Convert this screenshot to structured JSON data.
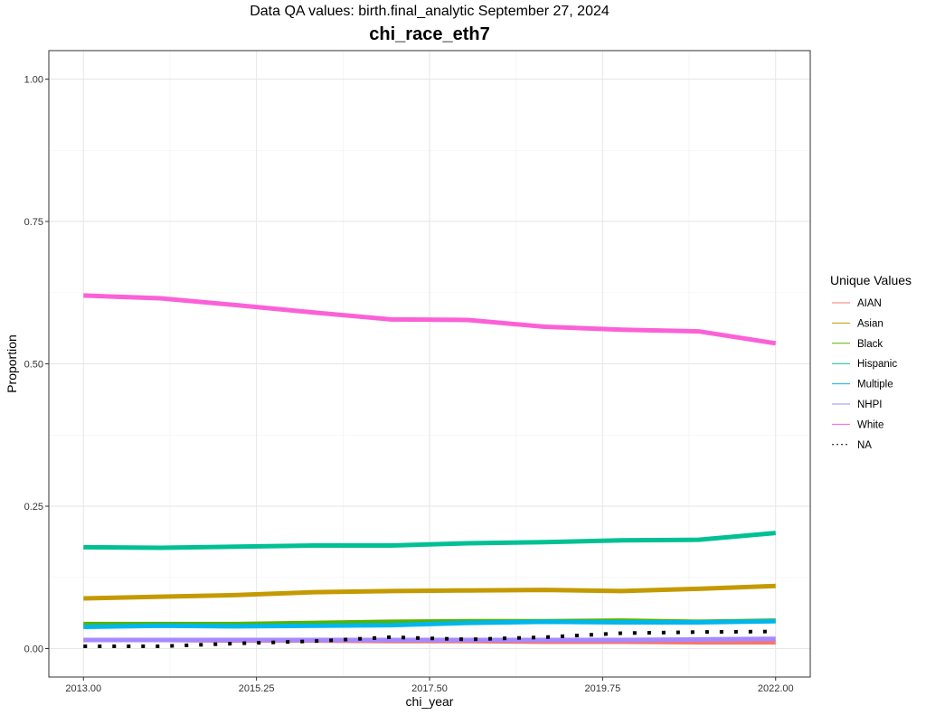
{
  "header": {
    "subtitle": "Data QA values: birth.final_analytic September 27, 2024",
    "title": "chi_race_eth7"
  },
  "chart_data": {
    "type": "line",
    "title": "chi_race_eth7",
    "subtitle": "Data QA values: birth.final_analytic September 27, 2024",
    "xlabel": "chi_year",
    "ylabel": "Proportion",
    "xlim": [
      2012.55,
      2022.45
    ],
    "ylim": [
      -0.05,
      1.05
    ],
    "x_ticks": [
      "2013.00",
      "2015.25",
      "2017.50",
      "2019.75",
      "2022.00"
    ],
    "x_tick_values": [
      2013,
      2015.25,
      2017.5,
      2019.75,
      2022
    ],
    "y_ticks": [
      "0.00",
      "0.25",
      "0.50",
      "0.75",
      "1.00"
    ],
    "y_tick_values": [
      0,
      0.25,
      0.5,
      0.75,
      1.0
    ],
    "grid": true,
    "legend_title": "Unique Values",
    "legend_position": "right",
    "x": [
      2013,
      2014,
      2015,
      2016,
      2017,
      2018,
      2019,
      2020,
      2021,
      2022
    ],
    "series": [
      {
        "name": "AIAN",
        "color": "#F8766D",
        "dash": "solid",
        "values": [
          0.015,
          0.015,
          0.014,
          0.014,
          0.013,
          0.013,
          0.012,
          0.012,
          0.011,
          0.011
        ]
      },
      {
        "name": "Asian",
        "color": "#C49A00",
        "dash": "solid",
        "values": [
          0.088,
          0.091,
          0.094,
          0.099,
          0.101,
          0.102,
          0.103,
          0.101,
          0.105,
          0.11
        ]
      },
      {
        "name": "Black",
        "color": "#53B400",
        "dash": "solid",
        "values": [
          0.043,
          0.043,
          0.043,
          0.045,
          0.047,
          0.048,
          0.048,
          0.049,
          0.047,
          0.049
        ]
      },
      {
        "name": "Hispanic",
        "color": "#00C094",
        "dash": "solid",
        "values": [
          0.178,
          0.177,
          0.179,
          0.181,
          0.181,
          0.185,
          0.187,
          0.19,
          0.191,
          0.203
        ]
      },
      {
        "name": "Multiple",
        "color": "#00B6EB",
        "dash": "solid",
        "values": [
          0.038,
          0.04,
          0.039,
          0.04,
          0.041,
          0.045,
          0.047,
          0.046,
          0.046,
          0.048
        ]
      },
      {
        "name": "NHPI",
        "color": "#A58AFF",
        "dash": "solid",
        "values": [
          0.015,
          0.015,
          0.015,
          0.015,
          0.015,
          0.015,
          0.015,
          0.015,
          0.016,
          0.017
        ]
      },
      {
        "name": "White",
        "color": "#FB61D7",
        "dash": "solid",
        "values": [
          0.62,
          0.615,
          0.603,
          0.59,
          0.578,
          0.577,
          0.565,
          0.56,
          0.557,
          0.536
        ]
      },
      {
        "name": "NA",
        "color": "#000000",
        "dash": "dotted",
        "values": [
          0.004,
          0.004,
          0.009,
          0.013,
          0.02,
          0.016,
          0.02,
          0.027,
          0.029,
          0.03
        ]
      }
    ]
  }
}
